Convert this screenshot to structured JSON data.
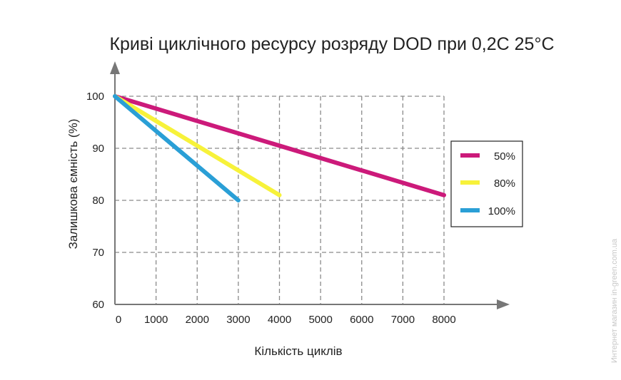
{
  "chart_data": {
    "type": "line",
    "title": "Криві циклічного ресурсу розряду DOD при 0,2C 25°C",
    "xlabel": "Кількість циклів",
    "ylabel": "Залишкова ємність (%)",
    "xlim": [
      0,
      8000
    ],
    "ylim": [
      60,
      100
    ],
    "xticks": [
      "0",
      "1000",
      "2000",
      "3000",
      "4000",
      "5000",
      "6000",
      "7000",
      "8000"
    ],
    "yticks": [
      "60",
      "70",
      "80",
      "90",
      "100"
    ],
    "grid": true,
    "legend_position": "right",
    "series": [
      {
        "name": "50%",
        "color": "#cc1a7a",
        "x": [
          0,
          8000
        ],
        "y": [
          100,
          81
        ]
      },
      {
        "name": "80%",
        "color": "#f7f23a",
        "x": [
          0,
          4000
        ],
        "y": [
          100,
          81
        ]
      },
      {
        "name": "100%",
        "color": "#2a9fd6",
        "x": [
          0,
          3000
        ],
        "y": [
          100,
          80
        ]
      }
    ]
  },
  "watermark": "Интернет магазин in-green.com.ua"
}
